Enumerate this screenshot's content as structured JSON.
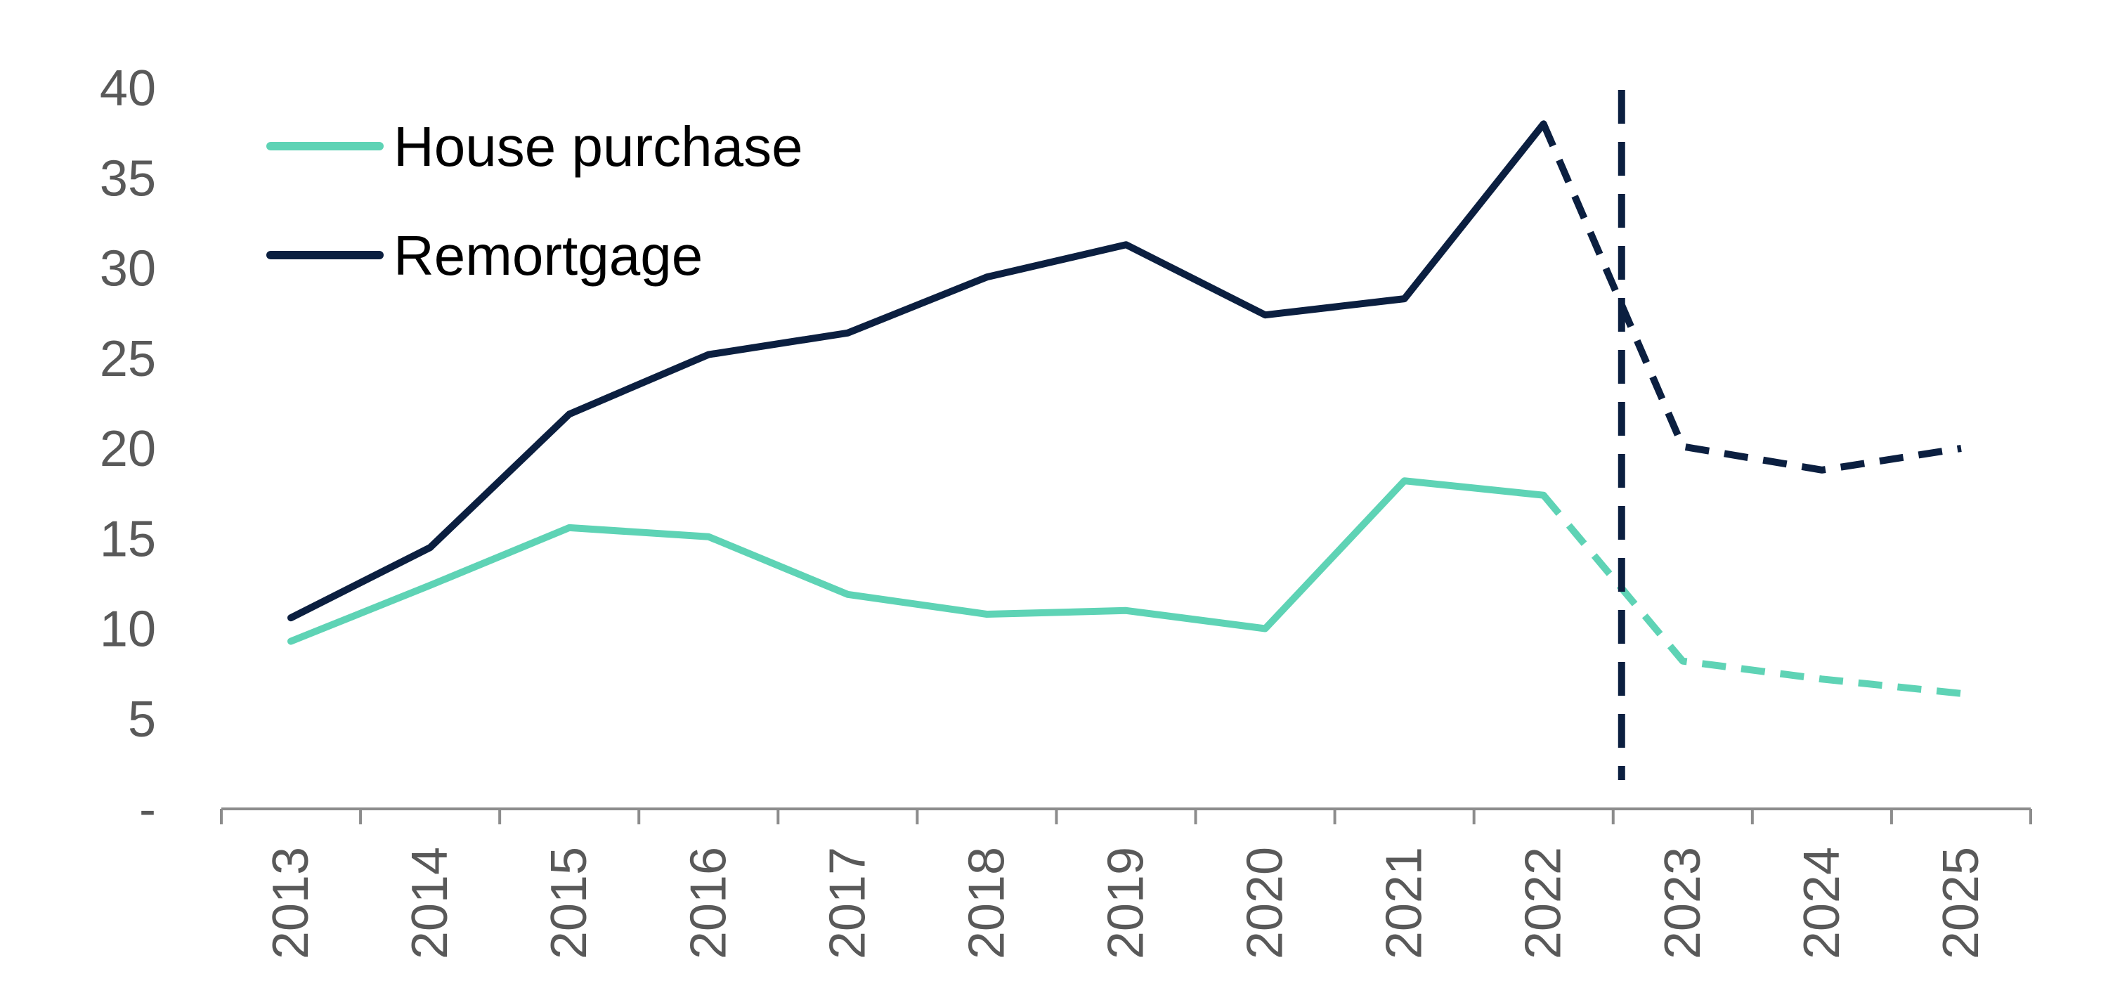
{
  "chart_data": {
    "type": "line",
    "title": "",
    "xlabel": "",
    "ylabel": "",
    "categories": [
      "2013",
      "2014",
      "2015",
      "2016",
      "2017",
      "2018",
      "2019",
      "2020",
      "2021",
      "2022",
      "2023",
      "2024",
      "2025"
    ],
    "ylim": [
      0,
      40
    ],
    "ytick_values": [
      0,
      5,
      10,
      15,
      20,
      25,
      30,
      35,
      40
    ],
    "ytick_labels": [
      "-",
      "5",
      "10",
      "15",
      "20",
      "25",
      "30",
      "35",
      "40"
    ],
    "grid": false,
    "legend": "top-left",
    "forecast_starts_after": "2022",
    "forecast_marker_between": [
      "2022",
      "2023"
    ],
    "series": [
      {
        "name": "House purchase",
        "color": "#5ED3B5",
        "values": [
          9.3,
          12.4,
          15.6,
          15.1,
          11.9,
          10.8,
          11.0,
          10.0,
          18.2,
          17.4,
          8.2,
          7.2,
          6.4
        ]
      },
      {
        "name": "Remortgage",
        "color": "#0B1F40",
        "values": [
          10.6,
          14.5,
          21.9,
          25.2,
          26.4,
          29.5,
          31.3,
          27.4,
          28.3,
          38.0,
          20.1,
          18.8,
          20.0
        ]
      }
    ]
  }
}
